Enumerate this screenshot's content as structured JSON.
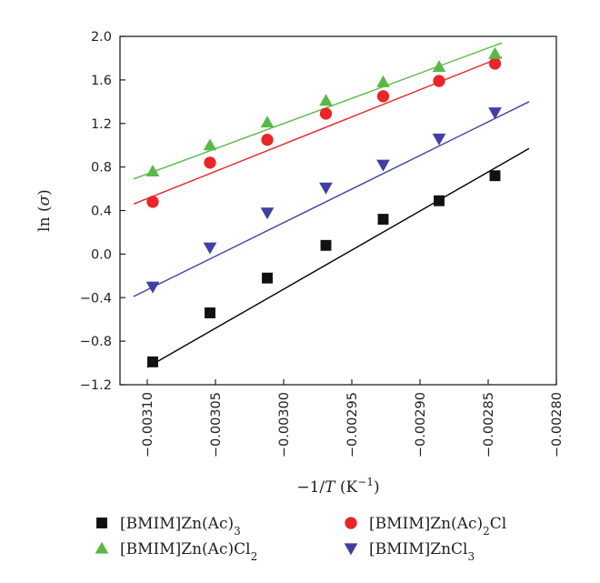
{
  "chart_data": {
    "type": "scatter",
    "title": "",
    "xlabel": {
      "prefix": "−1/",
      "var": "T",
      "unit": " (K",
      "unit_sup": "−1",
      "close": ")"
    },
    "ylabel": {
      "prefix": "ln (",
      "var": "σ",
      "close": ")"
    },
    "xlim": [
      -0.00312,
      -0.0028
    ],
    "ylim": [
      -1.2,
      2.0
    ],
    "x_ticks": [
      -0.0031,
      -0.00305,
      -0.003,
      -0.00295,
      -0.0029,
      -0.00285,
      -0.0028
    ],
    "x_tick_labels": [
      "−0.00310",
      "−0.00305",
      "−0.00300",
      "−0.00295",
      "−0.00290",
      "−0.00285",
      "−0.00280"
    ],
    "y_ticks": [
      -1.2,
      -0.8,
      -0.4,
      0.0,
      0.4,
      0.8,
      1.2,
      1.6,
      2.0
    ],
    "y_tick_labels": [
      "−1.2",
      "−0.8",
      "−0.4",
      "0.0",
      "0.4",
      "0.8",
      "1.2",
      "1.6",
      "2.0"
    ],
    "grid": false,
    "legend_position": "bottom",
    "series": [
      {
        "name": "[BMIM]Zn(Ac)3",
        "label_parts": [
          [
            "[BMIM]Zn(Ac)",
            false
          ],
          [
            "3",
            true
          ]
        ],
        "marker": "square",
        "color": "#111111",
        "line_color": "#000000",
        "x": [
          -0.003096,
          -0.003054,
          -0.003012,
          -0.002969,
          -0.002927,
          -0.002886,
          -0.002845
        ],
        "y": [
          -0.99,
          -0.54,
          -0.22,
          0.08,
          0.32,
          0.49,
          0.72
        ],
        "fit": [
          [
            -0.0031,
            -1.04
          ],
          [
            -0.00282,
            0.97
          ]
        ]
      },
      {
        "name": "[BMIM]Zn(Ac)2Cl",
        "label_parts": [
          [
            "[BMIM]Zn(Ac)",
            false
          ],
          [
            "2",
            true
          ],
          [
            "Cl",
            false
          ]
        ],
        "marker": "circle",
        "color": "#e8262a",
        "line_color": "#e8262a",
        "x": [
          -0.003096,
          -0.003054,
          -0.003012,
          -0.002969,
          -0.002927,
          -0.002886,
          -0.002845
        ],
        "y": [
          0.48,
          0.84,
          1.05,
          1.29,
          1.45,
          1.59,
          1.75
        ],
        "fit": [
          [
            -0.00311,
            0.46
          ],
          [
            -0.00284,
            1.81
          ]
        ]
      },
      {
        "name": "[BMIM]Zn(Ac)Cl2",
        "label_parts": [
          [
            "[BMIM]Zn(Ac)Cl",
            false
          ],
          [
            "2",
            true
          ]
        ],
        "marker": "triangle-up",
        "color": "#59b947",
        "line_color": "#59b947",
        "x": [
          -0.003096,
          -0.003054,
          -0.003012,
          -0.002969,
          -0.002927,
          -0.002886,
          -0.002845
        ],
        "y": [
          0.76,
          1.0,
          1.21,
          1.41,
          1.58,
          1.72,
          1.84
        ],
        "fit": [
          [
            -0.00311,
            0.69
          ],
          [
            -0.00284,
            1.94
          ]
        ]
      },
      {
        "name": "[BMIM]ZnCl3",
        "label_parts": [
          [
            "[BMIM]ZnCl",
            false
          ],
          [
            "3",
            true
          ]
        ],
        "marker": "triangle-down",
        "color": "#3f3fa6",
        "line_color": "#3f3fa6",
        "x": [
          -0.003096,
          -0.003054,
          -0.003012,
          -0.002969,
          -0.002927,
          -0.002886,
          -0.002845
        ],
        "y": [
          -0.3,
          0.06,
          0.38,
          0.61,
          0.82,
          1.06,
          1.3
        ],
        "fit": [
          [
            -0.00311,
            -0.39
          ],
          [
            -0.00282,
            1.4
          ]
        ]
      }
    ],
    "legend_order": [
      0,
      2,
      1,
      3
    ]
  }
}
